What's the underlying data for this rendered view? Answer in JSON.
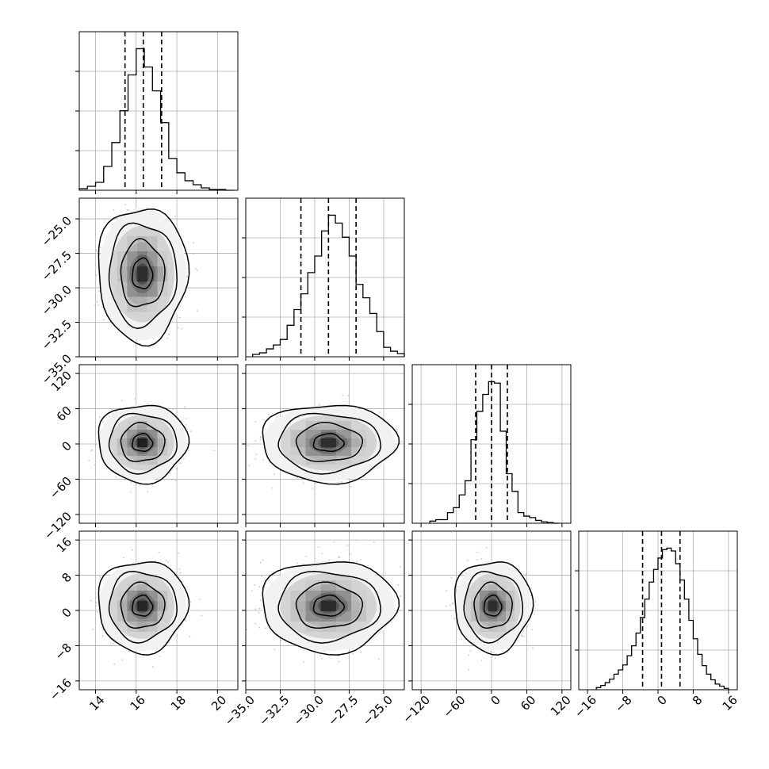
{
  "chart_data": {
    "type": "corner",
    "grid": true,
    "variables": [
      {
        "range": [
          13.2,
          21.0
        ],
        "ticks": [
          14,
          16,
          18,
          20
        ],
        "tick_labels": [
          "14",
          "16",
          "18",
          "20"
        ],
        "quantiles": [
          15.45,
          16.35,
          17.25
        ],
        "hist_bins": [
          13.2,
          13.6,
          14.0,
          14.4,
          14.8,
          15.2,
          15.6,
          16.0,
          16.4,
          16.8,
          17.2,
          17.6,
          18.0,
          18.4,
          18.8,
          19.2,
          19.6,
          20.0,
          20.4,
          20.8
        ],
        "hist_values": [
          2,
          5,
          10,
          30,
          60,
          100,
          145,
          178,
          155,
          125,
          85,
          40,
          22,
          12,
          7,
          3,
          1,
          1,
          0
        ]
      },
      {
        "range": [
          -35.0,
          -23.5
        ],
        "ticks": [
          -35.0,
          -32.5,
          -30.0,
          -27.5,
          -25.0
        ],
        "tick_labels": [
          "−35.0",
          "−32.5",
          "−30.0",
          "−27.5",
          "−25.0"
        ],
        "quantiles": [
          -31.0,
          -29.0,
          -27.0
        ],
        "hist_bins": [
          -34.5,
          -34.0,
          -33.5,
          -33.0,
          -32.5,
          -32.0,
          -31.5,
          -31.0,
          -30.5,
          -30.0,
          -29.5,
          -29.0,
          -28.5,
          -28.0,
          -27.5,
          -27.0,
          -26.5,
          -26.0,
          -25.5,
          -25.0,
          -24.5,
          -24.0,
          -23.5
        ],
        "hist_values": [
          3,
          5,
          10,
          15,
          22,
          40,
          60,
          80,
          107,
          128,
          160,
          180,
          170,
          152,
          128,
          92,
          75,
          55,
          32,
          12,
          7,
          4
        ]
      },
      {
        "range": [
          -135,
          135
        ],
        "ticks": [
          -120,
          -60,
          0,
          60,
          120
        ],
        "tick_labels": [
          "−120",
          "−60",
          "0",
          "60",
          "120"
        ],
        "quantiles": [
          -27,
          0,
          27
        ],
        "hist_bins": [
          -105,
          -95,
          -85,
          -75,
          -65,
          -55,
          -45,
          -35,
          -25,
          -15,
          -5,
          5,
          15,
          25,
          35,
          45,
          55,
          65,
          75,
          85,
          95,
          105,
          115
        ],
        "hist_values": [
          3,
          5,
          5,
          15,
          22,
          40,
          60,
          118,
          158,
          182,
          200,
          198,
          130,
          70,
          45,
          15,
          10,
          8,
          4,
          2,
          1,
          0
        ]
      },
      {
        "range": [
          -18,
          18
        ],
        "ticks": [
          -16,
          -8,
          0,
          8,
          16
        ],
        "tick_labels": [
          "−16",
          "−8",
          "0",
          "8",
          "16"
        ],
        "quantiles": [
          -3.5,
          0.8,
          5.0
        ],
        "hist_bins": [
          -14,
          -13,
          -12,
          -11,
          -10,
          -9,
          -8,
          -7,
          -6,
          -5,
          -4,
          -3,
          -2,
          -1,
          0,
          1,
          2,
          3,
          4,
          5,
          6,
          7,
          8,
          9,
          10,
          11,
          12,
          13,
          14,
          15,
          16
        ],
        "hist_values": [
          3,
          6,
          10,
          15,
          22,
          28,
          35,
          48,
          62,
          80,
          102,
          128,
          152,
          170,
          186,
          198,
          200,
          196,
          178,
          155,
          128,
          98,
          72,
          50,
          34,
          22,
          14,
          8,
          5,
          2
        ]
      }
    ],
    "pairs": [
      {
        "x_var": 0,
        "y_var": 1,
        "center": [
          16.3,
          -29.0
        ]
      },
      {
        "x_var": 0,
        "y_var": 2,
        "center": [
          16.3,
          2
        ]
      },
      {
        "x_var": 1,
        "y_var": 2,
        "center": [
          -29.0,
          2
        ]
      },
      {
        "x_var": 0,
        "y_var": 3,
        "center": [
          16.3,
          1
        ]
      },
      {
        "x_var": 1,
        "y_var": 3,
        "center": [
          -29.0,
          1
        ]
      },
      {
        "x_var": 2,
        "y_var": 3,
        "center": [
          2,
          1
        ]
      }
    ]
  }
}
